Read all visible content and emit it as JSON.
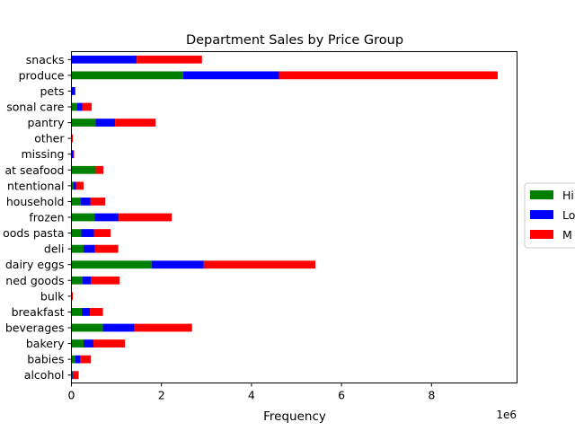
{
  "chart_data": {
    "type": "bar",
    "orientation": "horizontal",
    "stacked": true,
    "title": "Department Sales by Price Group",
    "xlabel": "Frequency",
    "ylabel": "",
    "x_offset_label": "1e6",
    "xlim": [
      0,
      9.9
    ],
    "x_scale": 1000000,
    "xticks": [
      0,
      2,
      4,
      6,
      8
    ],
    "xtick_labels": [
      "0",
      "2",
      "4",
      "6",
      "8"
    ],
    "grid": false,
    "legend_position": "center-right",
    "categories": [
      "alcohol",
      "babies",
      "bakery",
      "beverages",
      "breakfast",
      "bulk",
      "canned goods",
      "dairy eggs",
      "deli",
      "dry goods pasta",
      "frozen",
      "household",
      "international",
      "meat seafood",
      "missing",
      "other",
      "pantry",
      "personal care",
      "pets",
      "produce",
      "snacks"
    ],
    "category_tick_labels": [
      "alcohol",
      "babies",
      "bakery",
      "beverages",
      "breakfast",
      "bulk",
      "ned goods",
      "dairy eggs",
      "deli",
      "oods pasta",
      "frozen",
      "household",
      "ntentional",
      "at seafood",
      "missing",
      "other",
      "pantry",
      "sonal care",
      "pets",
      "produce",
      "snacks"
    ],
    "series": [
      {
        "name": "High-range product",
        "legend_text": "Hi",
        "color": "#008000",
        "values": [
          0.02,
          0.09,
          0.27,
          0.7,
          0.23,
          0.0,
          0.25,
          1.78,
          0.27,
          0.22,
          0.52,
          0.21,
          0.05,
          0.54,
          0.01,
          0.01,
          0.54,
          0.13,
          0.01,
          2.48,
          0.0
        ]
      },
      {
        "name": "Low-range product",
        "legend_text": "Lo",
        "color": "#0000ff",
        "values": [
          0.01,
          0.1,
          0.22,
          0.7,
          0.18,
          0.0,
          0.18,
          1.16,
          0.25,
          0.28,
          0.53,
          0.21,
          0.05,
          0.0,
          0.03,
          0.0,
          0.43,
          0.11,
          0.06,
          2.13,
          1.45
        ]
      },
      {
        "name": "Mid-range product",
        "legend_text": "M",
        "color": "#ff0000",
        "values": [
          0.13,
          0.24,
          0.7,
          1.28,
          0.29,
          0.03,
          0.64,
          2.48,
          0.52,
          0.37,
          1.18,
          0.33,
          0.17,
          0.17,
          0.02,
          0.02,
          0.9,
          0.21,
          0.02,
          4.86,
          1.45
        ]
      }
    ]
  }
}
